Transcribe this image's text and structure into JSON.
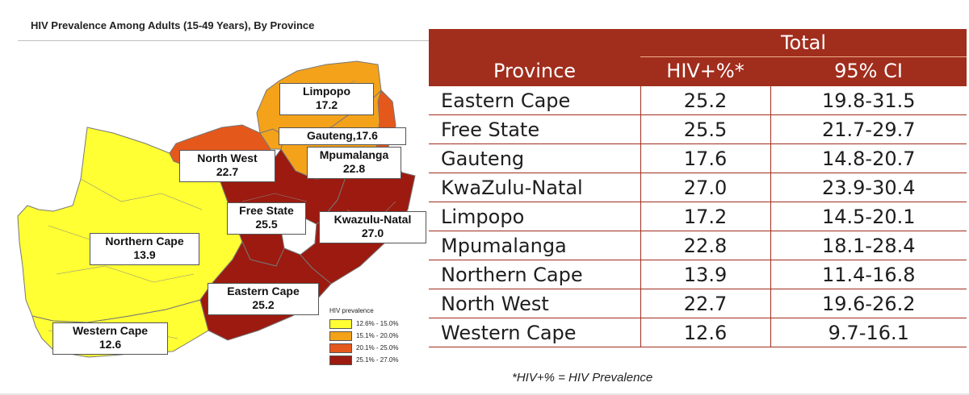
{
  "map": {
    "title": "HIV Prevalence Among Adults (15-49 Years), By Province",
    "labels": [
      {
        "key": "limpopo",
        "name": "Limpopo",
        "value": "17.2"
      },
      {
        "key": "gauteng",
        "name": "Gauteng,17.6",
        "value": ""
      },
      {
        "key": "north-west",
        "name": "North West",
        "value": "22.7"
      },
      {
        "key": "mpumalanga",
        "name": "Mpumalanga",
        "value": "22.8"
      },
      {
        "key": "free-state",
        "name": "Free State",
        "value": "25.5"
      },
      {
        "key": "kwazulu-natal",
        "name": "Kwazulu-Natal",
        "value": "27.0"
      },
      {
        "key": "northern-cape",
        "name": "Northern Cape",
        "value": "13.9"
      },
      {
        "key": "eastern-cape",
        "name": "Eastern Cape",
        "value": "25.2"
      },
      {
        "key": "western-cape",
        "name": "Western Cape",
        "value": "12.6"
      }
    ],
    "legend": {
      "title": "HIV prevalence",
      "items": [
        {
          "label": "12.6% - 15.0%",
          "color": "#ffff33"
        },
        {
          "label": "15.1% - 20.0%",
          "color": "#f5a21b"
        },
        {
          "label": "20.1% - 25.0%",
          "color": "#e5581c"
        },
        {
          "label": "25.1% - 27.0%",
          "color": "#9c1a10"
        }
      ]
    }
  },
  "table": {
    "group_header": "Total",
    "columns": [
      "Province",
      "HIV+%*",
      "95% CI"
    ],
    "rows": [
      [
        "Eastern Cape",
        "25.2",
        "19.8-31.5"
      ],
      [
        "Free State",
        "25.5",
        "21.7-29.7"
      ],
      [
        "Gauteng",
        "17.6",
        "14.8-20.7"
      ],
      [
        "KwaZulu-Natal",
        "27.0",
        "23.9-30.4"
      ],
      [
        "Limpopo",
        "17.2",
        "14.5-20.1"
      ],
      [
        "Mpumalanga",
        "22.8",
        "18.1-28.4"
      ],
      [
        "Northern Cape",
        "13.9",
        "11.4-16.8"
      ],
      [
        "North West",
        "22.7",
        "19.6-26.2"
      ],
      [
        "Western Cape",
        "12.6",
        "9.7-16.1"
      ]
    ],
    "footnote": "*HIV+% = HIV Prevalence"
  },
  "chart_data": [
    {
      "type": "map",
      "title": "HIV Prevalence Among Adults (15-49 Years), By Province",
      "categories": [
        "Limpopo",
        "Gauteng",
        "North West",
        "Mpumalanga",
        "Free State",
        "Kwazulu-Natal",
        "Northern Cape",
        "Eastern Cape",
        "Western Cape"
      ],
      "values": [
        17.2,
        17.6,
        22.7,
        22.8,
        25.5,
        27.0,
        13.9,
        25.2,
        12.6
      ],
      "legend": [
        "12.6% - 15.0%",
        "15.1% - 20.0%",
        "20.1% - 25.0%",
        "25.1% - 27.0%"
      ]
    },
    {
      "type": "table",
      "group_header": "Total",
      "columns": [
        "Province",
        "HIV+%*",
        "95% CI"
      ],
      "rows": [
        [
          "Eastern Cape",
          25.2,
          "19.8-31.5"
        ],
        [
          "Free State",
          25.5,
          "21.7-29.7"
        ],
        [
          "Gauteng",
          17.6,
          "14.8-20.7"
        ],
        [
          "KwaZulu-Natal",
          27.0,
          "23.9-30.4"
        ],
        [
          "Limpopo",
          17.2,
          "14.5-20.1"
        ],
        [
          "Mpumalanga",
          22.8,
          "18.1-28.4"
        ],
        [
          "Northern Cape",
          13.9,
          "11.4-16.8"
        ],
        [
          "North West",
          22.7,
          "19.6-26.2"
        ],
        [
          "Western Cape",
          12.6,
          "9.7-16.1"
        ]
      ]
    }
  ]
}
